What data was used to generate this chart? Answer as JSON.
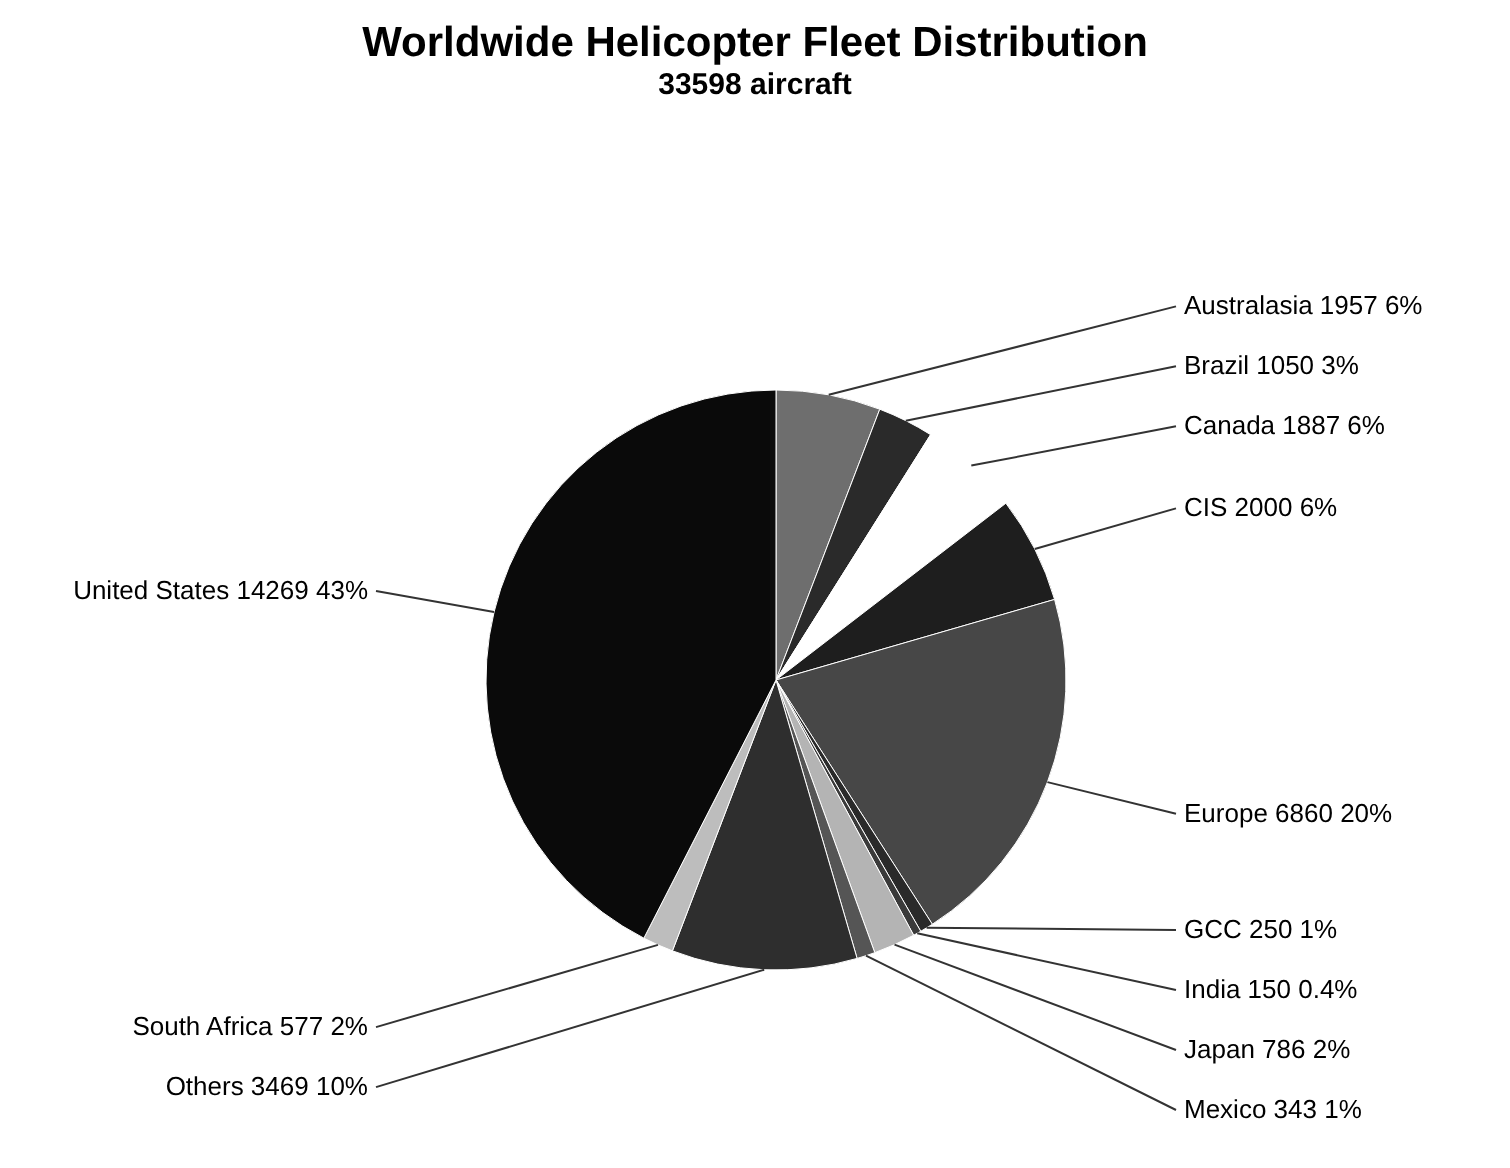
{
  "chart_data": {
    "type": "pie",
    "title": "Worldwide Helicopter Fleet Distribution",
    "subtitle": "33598 aircraft",
    "categories": [
      "Australasia",
      "Brazil",
      "Canada",
      "CIS",
      "Europe",
      "GCC",
      "India",
      "Japan",
      "Mexico",
      "Others",
      "South Africa",
      "United States"
    ],
    "values": [
      1957,
      1050,
      1887,
      2000,
      6860,
      250,
      150,
      786,
      343,
      3469,
      577,
      14269
    ],
    "value_labels": [
      "1957 6%",
      "1050 3%",
      "1887 6%",
      "2000 6%",
      "6860 20%",
      "250 1%",
      "150 0.4%",
      "786 2%",
      "343 1%",
      "3469 10%",
      "577 2%",
      "14269 43%"
    ],
    "colors": [
      "#6e6e6e",
      "#2a2a2a",
      "#ffffff",
      "#1e1e1e",
      "#474747",
      "#2a2a2a",
      "#3a3a3a",
      "#b4b4b4",
      "#555555",
      "#2e2e2e",
      "#bdbdbd",
      "#0a0a0a"
    ],
    "legend": false
  }
}
